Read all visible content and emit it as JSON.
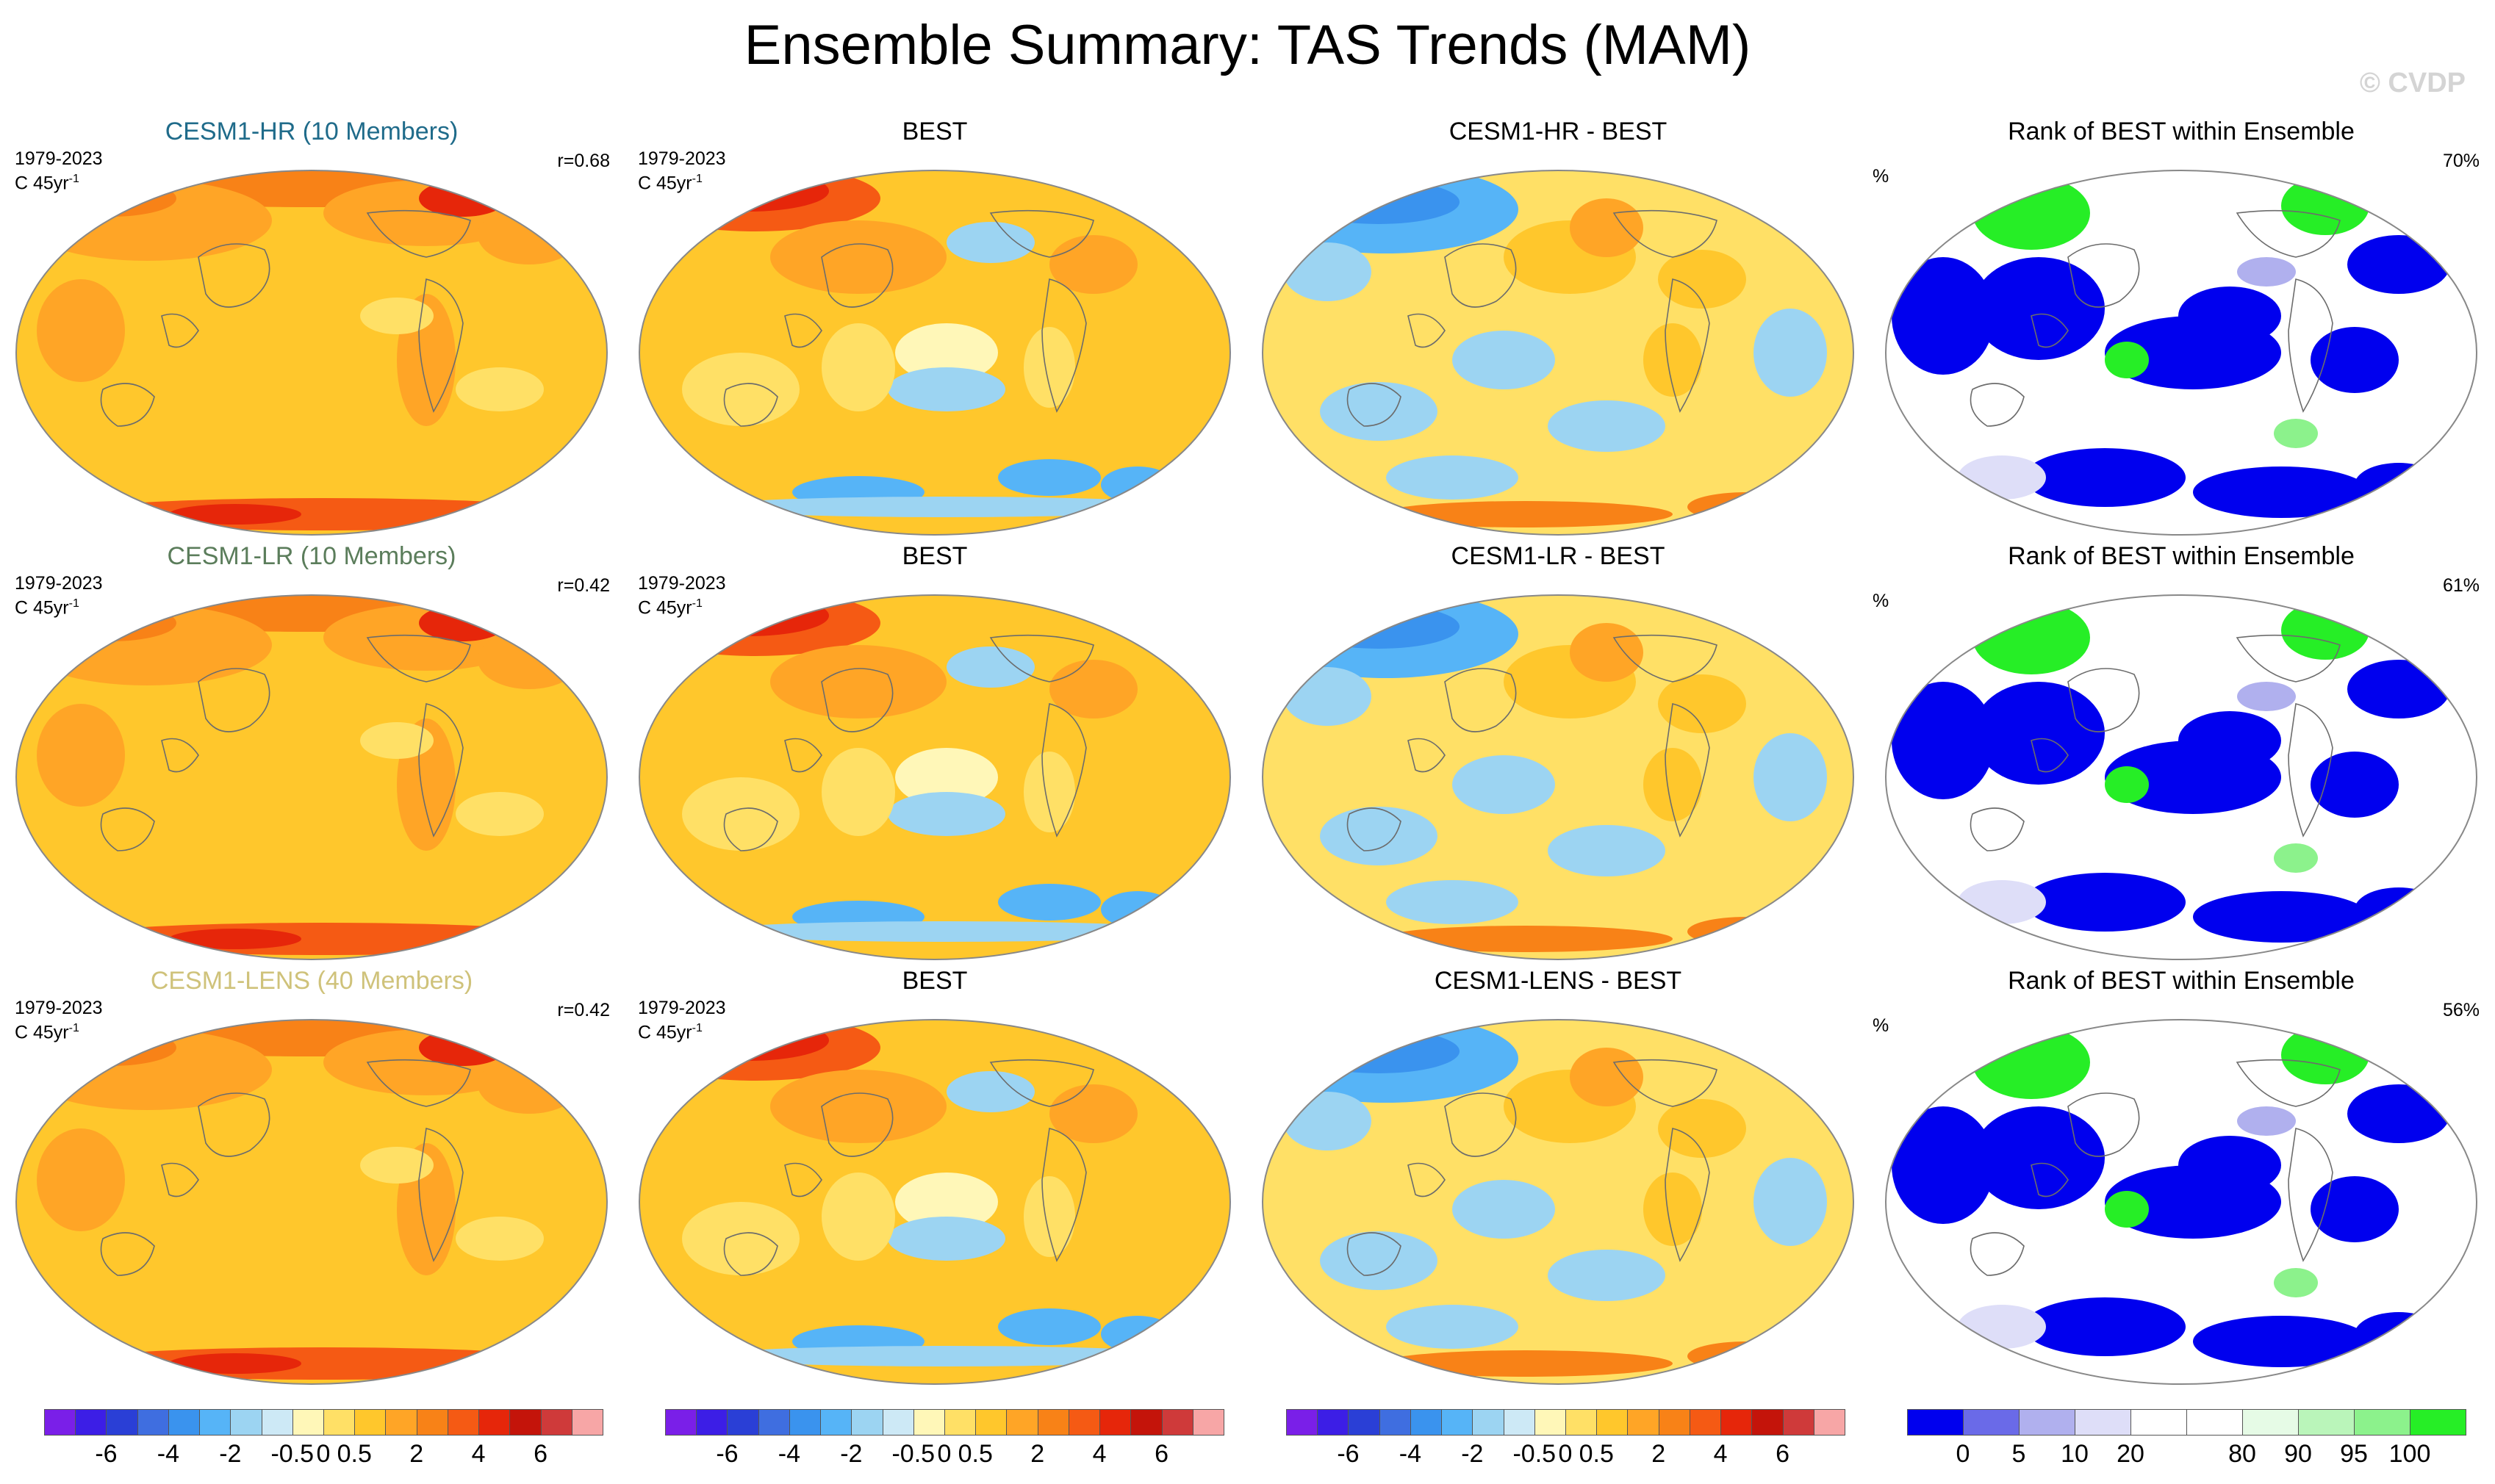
{
  "title": "Ensemble Summary: TAS Trends (MAM)",
  "watermark": "© CVDP",
  "colors": {
    "trend": [
      "#7a1fe8",
      "#3c1ee6",
      "#2a3fd6",
      "#3f6ee0",
      "#3a93ee",
      "#56b4f7",
      "#9cd4f2",
      "#cde9f6",
      "#fff7b8",
      "#ffe066",
      "#ffc72c",
      "#ffa526",
      "#f88217",
      "#f55a14",
      "#e6260a",
      "#c4140a",
      "#cf3a3a",
      "#f7a6a6"
    ],
    "rank": [
      "#0000ee",
      "#6a6ae8",
      "#b0b0ee",
      "#dedef8",
      "#ffffff",
      "#ffffff",
      "#e6fbe6",
      "#baf5ba",
      "#8cf28c",
      "#26ee26"
    ]
  },
  "rows": [
    {
      "model_title": "CESM1-HR (10 Members)",
      "period": "1979-2023",
      "units": "C 45yr",
      "units_exp": "-1",
      "corr": "r=0.68",
      "obs_title": "BEST",
      "diff_title": "CESM1-HR - BEST",
      "rank_title": "Rank of BEST within Ensemble",
      "rank_unit": "%",
      "rank_pct": "70%"
    },
    {
      "model_title": "CESM1-LR (10 Members)",
      "period": "1979-2023",
      "units": "C 45yr",
      "units_exp": "-1",
      "corr": "r=0.42",
      "obs_title": "BEST",
      "diff_title": "CESM1-LR - BEST",
      "rank_title": "Rank of BEST within Ensemble",
      "rank_unit": "%",
      "rank_pct": "61%"
    },
    {
      "model_title": "CESM1-LENS (40 Members)",
      "period": "1979-2023",
      "units": "C 45yr",
      "units_exp": "-1",
      "corr": "r=0.42",
      "obs_title": "BEST",
      "diff_title": "CESM1-LENS - BEST",
      "rank_title": "Rank of BEST within Ensemble",
      "rank_unit": "%",
      "rank_pct": "56%"
    }
  ],
  "chart_data": {
    "type": "heatmap",
    "title": "Ensemble Summary: TAS Trends (MAM)",
    "projection": "Robinson, Pacific-centered",
    "variable": "TAS trend",
    "period": "1979-2023",
    "units": "C 45yr-1",
    "panels": [
      {
        "row": 1,
        "col": 1,
        "title": "CESM1-HR (10 Members)",
        "pattern_correlation": 0.68
      },
      {
        "row": 1,
        "col": 2,
        "title": "BEST"
      },
      {
        "row": 1,
        "col": 3,
        "title": "CESM1-HR - BEST"
      },
      {
        "row": 1,
        "col": 4,
        "title": "Rank of BEST within Ensemble",
        "value": "70%"
      },
      {
        "row": 2,
        "col": 1,
        "title": "CESM1-LR (10 Members)",
        "pattern_correlation": 0.42
      },
      {
        "row": 2,
        "col": 2,
        "title": "BEST"
      },
      {
        "row": 2,
        "col": 3,
        "title": "CESM1-LR - BEST"
      },
      {
        "row": 2,
        "col": 4,
        "title": "Rank of BEST within Ensemble",
        "value": "61%"
      },
      {
        "row": 3,
        "col": 1,
        "title": "CESM1-LENS (40 Members)",
        "pattern_correlation": 0.42
      },
      {
        "row": 3,
        "col": 2,
        "title": "BEST"
      },
      {
        "row": 3,
        "col": 3,
        "title": "CESM1-LENS - BEST"
      },
      {
        "row": 3,
        "col": 4,
        "title": "Rank of BEST within Ensemble",
        "value": "56%"
      }
    ],
    "trend_colorbar_labels": [
      "-6",
      "-4",
      "-2",
      "-0.5",
      "0",
      "0.5",
      "2",
      "4",
      "6"
    ],
    "rank_colorbar_labels": [
      "0",
      "5",
      "10",
      "20",
      "80",
      "90",
      "95",
      "100"
    ]
  }
}
